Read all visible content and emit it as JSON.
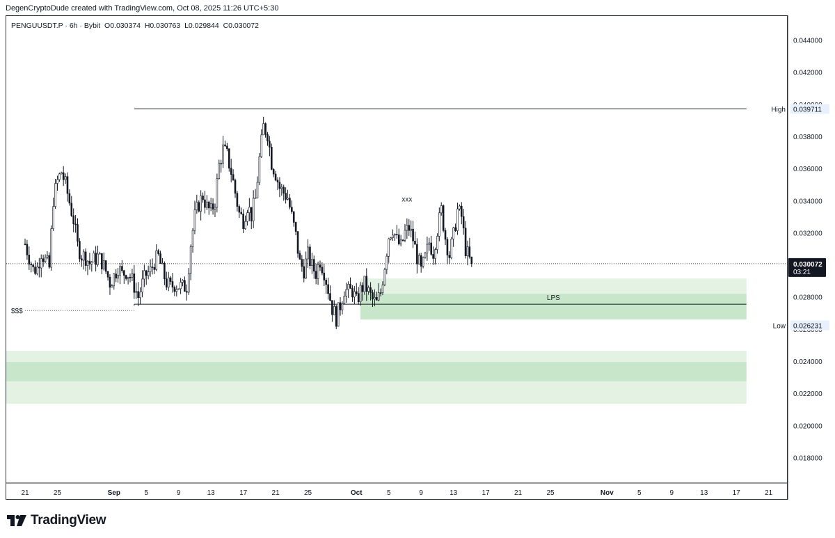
{
  "header": {
    "text": "DegenCryptoDude created with TradingView.com, Oct 08, 2025 11:26 UTC+5:30"
  },
  "symbol": {
    "name": "PENGUUSDT.P · 6h · Bybit",
    "open": "O0.030374",
    "high": "H0.030763",
    "low": "L0.029844",
    "close": "C0.030072"
  },
  "footer": {
    "brand": "TradingView"
  },
  "colors": {
    "up": "#131722",
    "down": "#131722",
    "zone_light": "#e3f2e3",
    "zone_dark": "#c8e6c9",
    "line": "#131722",
    "price_tag_bg": "#131722"
  },
  "chart_data": {
    "type": "candlestick",
    "ylim": [
      0.0165,
      0.0455
    ],
    "y_ticks": [
      "0.044000",
      "0.042000",
      "0.040000",
      "0.038000",
      "0.036000",
      "0.034000",
      "0.032000",
      "0.030000",
      "0.028000",
      "0.026000",
      "0.024000",
      "0.022000",
      "0.020000",
      "0.018000"
    ],
    "x_ticks": [
      {
        "label": "21",
        "i": 0
      },
      {
        "label": "25",
        "i": 16
      },
      {
        "label": "Sep",
        "i": 44
      },
      {
        "label": "5",
        "i": 60
      },
      {
        "label": "9",
        "i": 76
      },
      {
        "label": "13",
        "i": 92
      },
      {
        "label": "17",
        "i": 108
      },
      {
        "label": "21",
        "i": 124
      },
      {
        "label": "25",
        "i": 140
      },
      {
        "label": "Oct",
        "i": 164
      },
      {
        "label": "5",
        "i": 180
      },
      {
        "label": "9",
        "i": 196
      },
      {
        "label": "13",
        "i": 212
      },
      {
        "label": "17",
        "i": 228
      },
      {
        "label": "21",
        "i": 244
      },
      {
        "label": "25",
        "i": 260
      },
      {
        "label": "Nov",
        "i": 288
      },
      {
        "label": "5",
        "i": 304
      },
      {
        "label": "9",
        "i": 320
      },
      {
        "label": "13",
        "i": 336
      },
      {
        "label": "17",
        "i": 352
      },
      {
        "label": "21",
        "i": 368
      }
    ],
    "current_price": {
      "value": 0.030072,
      "label": "0.030072",
      "countdown": "03:21"
    },
    "high_marker": {
      "label": "High",
      "value": 0.039711,
      "text": "0.039711"
    },
    "low_marker": {
      "label": "Low",
      "value": 0.026231,
      "text": "0.026231"
    },
    "annotations": {
      "resistance": {
        "value": 0.039711,
        "from_i": 54,
        "to_i": 357
      },
      "sss": {
        "label": "$$$",
        "value": 0.02755,
        "from_i": 54,
        "to_i": 357
      },
      "lps": {
        "label": "LPS"
      },
      "xxx": {
        "label": "xxx",
        "i": 189,
        "value": 0.03395
      }
    },
    "zones": [
      {
        "name": "lps-zone-outer",
        "y_top": 0.02915,
        "y_bottom": 0.0266,
        "from_i": 166,
        "to_i": 357,
        "tone": "light"
      },
      {
        "name": "lps-zone-inner",
        "y_top": 0.0282,
        "y_bottom": 0.0266,
        "from_i": 166,
        "to_i": 357,
        "tone": "dark"
      },
      {
        "name": "lower-zone-outer",
        "y_top": 0.02465,
        "y_bottom": 0.02135,
        "from_i": 0,
        "to_i": 357,
        "tone": "light"
      },
      {
        "name": "lower-zone-inner",
        "y_top": 0.02395,
        "y_bottom": 0.02275,
        "from_i": 0,
        "to_i": 357,
        "tone": "dark"
      }
    ],
    "path_points": [
      [
        0,
        0.0313
      ],
      [
        2,
        0.0305
      ],
      [
        4,
        0.0297
      ],
      [
        6,
        0.0298
      ],
      [
        8,
        0.0308
      ],
      [
        10,
        0.0303
      ],
      [
        12,
        0.0298
      ],
      [
        14,
        0.0341
      ],
      [
        16,
        0.0352
      ],
      [
        18,
        0.0358
      ],
      [
        20,
        0.035
      ],
      [
        22,
        0.0339
      ],
      [
        24,
        0.0328
      ],
      [
        26,
        0.0312
      ],
      [
        28,
        0.0306
      ],
      [
        30,
        0.0305
      ],
      [
        32,
        0.0301
      ],
      [
        34,
        0.0303
      ],
      [
        36,
        0.0305
      ],
      [
        38,
        0.0302
      ],
      [
        40,
        0.0296
      ],
      [
        42,
        0.0289
      ],
      [
        44,
        0.0293
      ],
      [
        46,
        0.0299
      ],
      [
        48,
        0.0294
      ],
      [
        50,
        0.0296
      ],
      [
        52,
        0.0293
      ],
      [
        54,
        0.0287
      ],
      [
        56,
        0.028
      ],
      [
        58,
        0.0288
      ],
      [
        60,
        0.0294
      ],
      [
        62,
        0.0296
      ],
      [
        64,
        0.0302
      ],
      [
        66,
        0.0305
      ],
      [
        68,
        0.0296
      ],
      [
        70,
        0.0289
      ],
      [
        72,
        0.0286
      ],
      [
        74,
        0.0288
      ],
      [
        76,
        0.0287
      ],
      [
        78,
        0.0286
      ],
      [
        80,
        0.0287
      ],
      [
        82,
        0.0313
      ],
      [
        84,
        0.033
      ],
      [
        86,
        0.0338
      ],
      [
        88,
        0.0343
      ],
      [
        90,
        0.0336
      ],
      [
        92,
        0.0333
      ],
      [
        94,
        0.034
      ],
      [
        96,
        0.0362
      ],
      [
        98,
        0.0372
      ],
      [
        100,
        0.0368
      ],
      [
        102,
        0.0358
      ],
      [
        104,
        0.0345
      ],
      [
        106,
        0.0332
      ],
      [
        108,
        0.0328
      ],
      [
        110,
        0.0337
      ],
      [
        112,
        0.0331
      ],
      [
        114,
        0.0341
      ],
      [
        116,
        0.0366
      ],
      [
        118,
        0.0386
      ],
      [
        120,
        0.0382
      ],
      [
        122,
        0.0364
      ],
      [
        124,
        0.0357
      ],
      [
        126,
        0.0348
      ],
      [
        128,
        0.0345
      ],
      [
        130,
        0.0342
      ],
      [
        132,
        0.033
      ],
      [
        134,
        0.0318
      ],
      [
        136,
        0.0301
      ],
      [
        138,
        0.0297
      ],
      [
        140,
        0.0306
      ],
      [
        142,
        0.0299
      ],
      [
        144,
        0.0295
      ],
      [
        146,
        0.0303
      ],
      [
        148,
        0.0296
      ],
      [
        150,
        0.0285
      ],
      [
        152,
        0.0273
      ],
      [
        154,
        0.0267
      ],
      [
        156,
        0.0275
      ],
      [
        158,
        0.0285
      ],
      [
        160,
        0.0283
      ],
      [
        162,
        0.0284
      ],
      [
        164,
        0.0277
      ],
      [
        166,
        0.0284
      ],
      [
        168,
        0.0288
      ],
      [
        170,
        0.0283
      ],
      [
        172,
        0.0278
      ],
      [
        174,
        0.0276
      ],
      [
        176,
        0.0283
      ],
      [
        178,
        0.03
      ],
      [
        180,
        0.0318
      ],
      [
        182,
        0.0323
      ],
      [
        184,
        0.0315
      ],
      [
        186,
        0.0311
      ],
      [
        188,
        0.032
      ],
      [
        190,
        0.0323
      ],
      [
        192,
        0.0316
      ],
      [
        194,
        0.0305
      ],
      [
        196,
        0.0296
      ],
      [
        198,
        0.0304
      ],
      [
        200,
        0.0314
      ],
      [
        202,
        0.0308
      ],
      [
        204,
        0.0322
      ],
      [
        206,
        0.0334
      ],
      [
        208,
        0.0317
      ],
      [
        210,
        0.0306
      ],
      [
        212,
        0.0318
      ],
      [
        214,
        0.0334
      ],
      [
        216,
        0.033
      ],
      [
        218,
        0.031
      ],
      [
        220,
        0.0303
      ],
      [
        221,
        0.0301
      ]
    ]
  }
}
